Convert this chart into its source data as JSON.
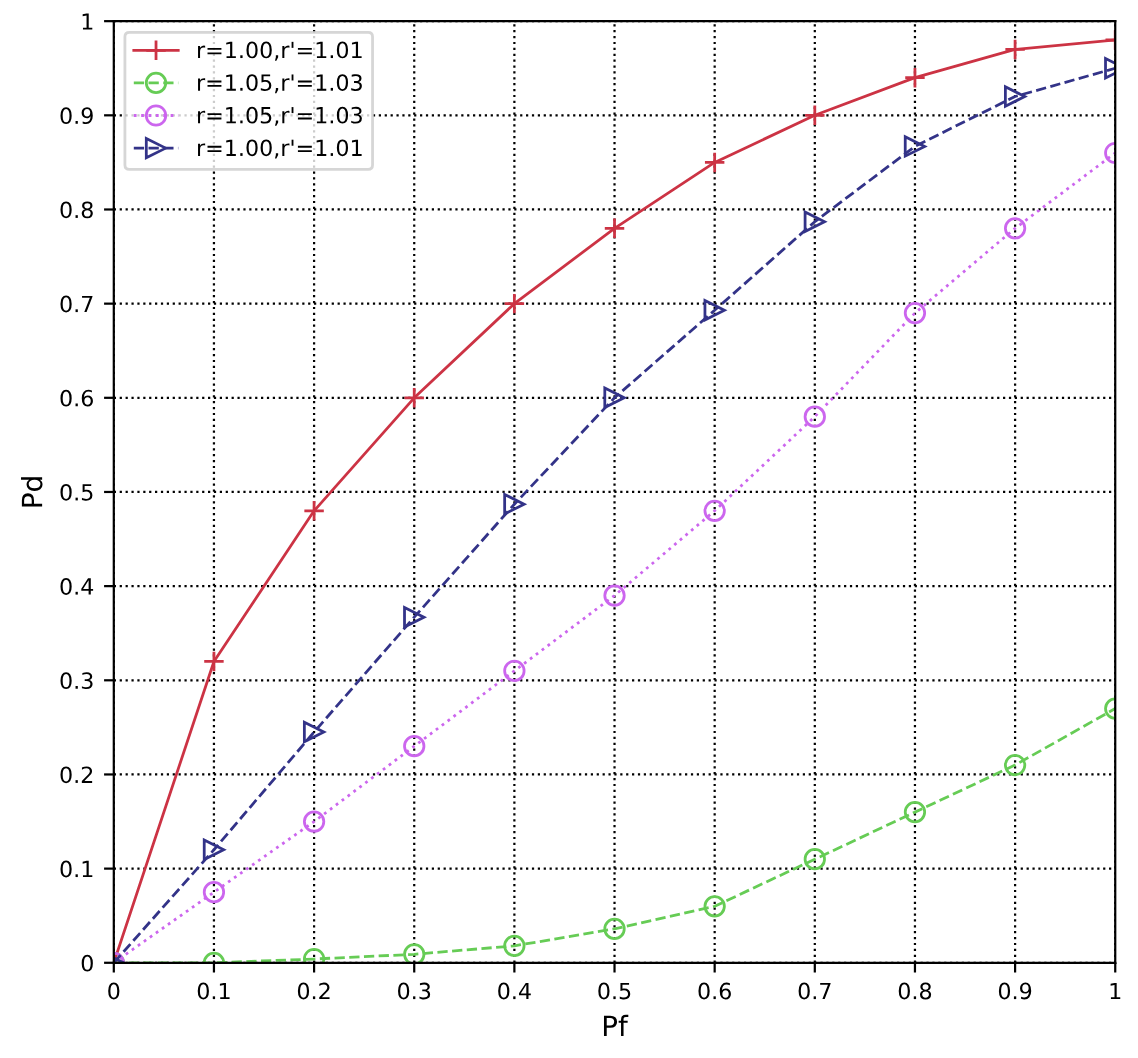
{
  "chart_data": {
    "type": "line",
    "xlabel": "Pf",
    "ylabel": "Pd",
    "x": [
      0,
      0.1,
      0.2,
      0.3,
      0.4,
      0.5,
      0.6,
      0.7,
      0.8,
      0.9,
      1
    ],
    "series": [
      {
        "name": "r=1.00,r'=1.01",
        "color": "#cc3344",
        "marker": "cross",
        "line_style": "solid",
        "values": [
          0,
          0.32,
          0.48,
          0.6,
          0.7,
          0.78,
          0.85,
          0.9,
          0.94,
          0.97,
          0.98
        ]
      },
      {
        "name": "r=1.05,r'=1.03",
        "color": "#66cc55",
        "marker": "circle",
        "line_style": "dashed",
        "values": [
          0,
          0,
          0.004,
          0.009,
          0.018,
          0.036,
          0.06,
          0.11,
          0.16,
          0.21,
          0.27
        ]
      },
      {
        "name": "r=1.05,r'=1.03",
        "color": "#cc66ee",
        "marker": "circle",
        "line_style": "dotted",
        "values": [
          0,
          0.075,
          0.15,
          0.23,
          0.31,
          0.39,
          0.48,
          0.58,
          0.69,
          0.78,
          0.86
        ]
      },
      {
        "name": "r=1.00,r'=1.01",
        "color": "#333388",
        "marker": "triangle",
        "line_style": "dashed",
        "values": [
          0,
          0.12,
          0.245,
          0.367,
          0.487,
          0.6,
          0.693,
          0.787,
          0.867,
          0.92,
          0.95
        ]
      }
    ],
    "xlim": [
      0,
      1
    ],
    "ylim": [
      0,
      1
    ],
    "xticks": [
      0,
      0.1,
      0.2,
      0.3,
      0.4,
      0.5,
      0.6,
      0.7,
      0.8,
      0.9,
      1
    ],
    "yticks": [
      0,
      0.1,
      0.2,
      0.3,
      0.4,
      0.5,
      0.6,
      0.7,
      0.8,
      0.9,
      1
    ],
    "grid": true,
    "legend": "top left"
  }
}
